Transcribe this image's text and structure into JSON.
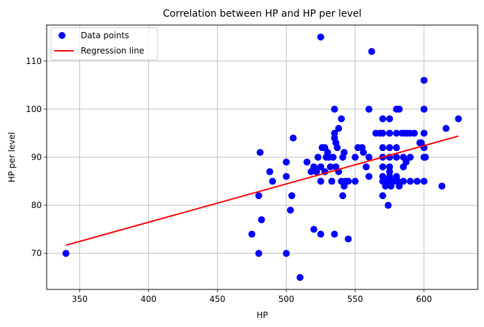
{
  "chart_data": {
    "type": "scatter",
    "title": "Correlation between HP and HP per level",
    "xlabel": "HP",
    "ylabel": "HP per level",
    "xlim": [
      326,
      639
    ],
    "ylim": [
      62.5,
      117.5
    ],
    "xticks": [
      350,
      400,
      450,
      500,
      550,
      600
    ],
    "yticks": [
      70,
      80,
      90,
      100,
      110
    ],
    "grid": true,
    "legend_position": "top-left",
    "colors": {
      "points": "#0000ff",
      "line": "#ff0000"
    },
    "series": [
      {
        "name": "Data points",
        "kind": "scatter",
        "points": [
          [
            340,
            70
          ],
          [
            475,
            74
          ],
          [
            480,
            82
          ],
          [
            480,
            70
          ],
          [
            481,
            91
          ],
          [
            482,
            77
          ],
          [
            488,
            87
          ],
          [
            490,
            85
          ],
          [
            500,
            89
          ],
          [
            500,
            86
          ],
          [
            500,
            70
          ],
          [
            503,
            79
          ],
          [
            504,
            82
          ],
          [
            505,
            94
          ],
          [
            510,
            65
          ],
          [
            515,
            89
          ],
          [
            518,
            87
          ],
          [
            520,
            75
          ],
          [
            520,
            88
          ],
          [
            522,
            87
          ],
          [
            523,
            90
          ],
          [
            525,
            88
          ],
          [
            525,
            85
          ],
          [
            525,
            74
          ],
          [
            525,
            115
          ],
          [
            526,
            92
          ],
          [
            528,
            92
          ],
          [
            528,
            87
          ],
          [
            529,
            90
          ],
          [
            530,
            91
          ],
          [
            531,
            90
          ],
          [
            532,
            88
          ],
          [
            533,
            85
          ],
          [
            534,
            90
          ],
          [
            535,
            94
          ],
          [
            535,
            95
          ],
          [
            535,
            100
          ],
          [
            535,
            74
          ],
          [
            536,
            88
          ],
          [
            536,
            93
          ],
          [
            537,
            92
          ],
          [
            538,
            87
          ],
          [
            538,
            96
          ],
          [
            540,
            98
          ],
          [
            540,
            85
          ],
          [
            541,
            82
          ],
          [
            541,
            90
          ],
          [
            542,
            91
          ],
          [
            542,
            84
          ],
          [
            543,
            85
          ],
          [
            545,
            73
          ],
          [
            545,
            85
          ],
          [
            550,
            90
          ],
          [
            550,
            85
          ],
          [
            552,
            92
          ],
          [
            555,
            92
          ],
          [
            556,
            91
          ],
          [
            558,
            88
          ],
          [
            560,
            100
          ],
          [
            560,
            90
          ],
          [
            560,
            86
          ],
          [
            562,
            112
          ],
          [
            565,
            95
          ],
          [
            568,
            95
          ],
          [
            570,
            98
          ],
          [
            570,
            95
          ],
          [
            570,
            92
          ],
          [
            570,
            90
          ],
          [
            570,
            88
          ],
          [
            570,
            86
          ],
          [
            570,
            85
          ],
          [
            570,
            82
          ],
          [
            571,
            85
          ],
          [
            572,
            84
          ],
          [
            573,
            85
          ],
          [
            574,
            80
          ],
          [
            575,
            98
          ],
          [
            575,
            95
          ],
          [
            575,
            92
          ],
          [
            575,
            90
          ],
          [
            575,
            88
          ],
          [
            575,
            87
          ],
          [
            575,
            86
          ],
          [
            576,
            84
          ],
          [
            577,
            85
          ],
          [
            578,
            85
          ],
          [
            580,
            100
          ],
          [
            580,
            95
          ],
          [
            580,
            92
          ],
          [
            580,
            90
          ],
          [
            580,
            86
          ],
          [
            581,
            85
          ],
          [
            582,
            84
          ],
          [
            582,
            100
          ],
          [
            584,
            95
          ],
          [
            585,
            90
          ],
          [
            585,
            88
          ],
          [
            585,
            85
          ],
          [
            586,
            95
          ],
          [
            587,
            89
          ],
          [
            588,
            95
          ],
          [
            590,
            95
          ],
          [
            590,
            90
          ],
          [
            590,
            85
          ],
          [
            593,
            95
          ],
          [
            595,
            85
          ],
          [
            597,
            93
          ],
          [
            598,
            93
          ],
          [
            600,
            106
          ],
          [
            600,
            100
          ],
          [
            600,
            95
          ],
          [
            600,
            92
          ],
          [
            600,
            90
          ],
          [
            600,
            85
          ],
          [
            601,
            90
          ],
          [
            613,
            84
          ],
          [
            616,
            96
          ],
          [
            625,
            98
          ]
        ]
      },
      {
        "name": "Regression line",
        "kind": "line",
        "points": [
          [
            340,
            71.7
          ],
          [
            625,
            94.4
          ]
        ]
      }
    ]
  }
}
